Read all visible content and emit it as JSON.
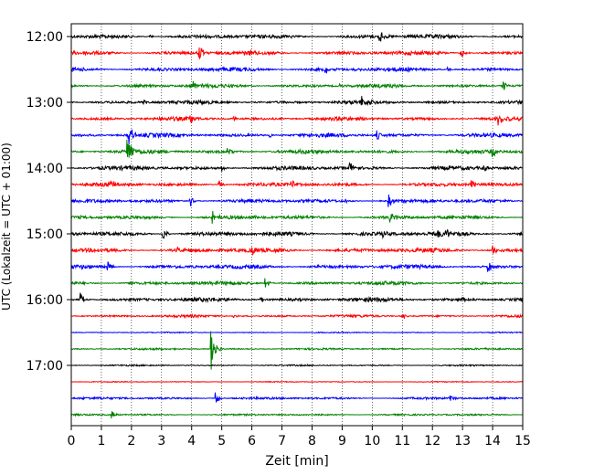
{
  "chart_data": {
    "type": "line",
    "title": "",
    "xlabel": "Zeit  [min]",
    "ylabel": "UTC (Lokalzeit = UTC + 01:00)",
    "xlim": [
      0,
      15
    ],
    "x_ticks": [
      0,
      1,
      2,
      3,
      4,
      5,
      6,
      7,
      8,
      9,
      10,
      11,
      12,
      13,
      14,
      15
    ],
    "x_tick_labels": [
      "0",
      "1",
      "2",
      "3",
      "4",
      "5",
      "6",
      "7",
      "8",
      "9",
      "10",
      "11",
      "12",
      "13",
      "14",
      "15"
    ],
    "y_ticks": [
      "12:00",
      "13:00",
      "14:00",
      "15:00",
      "16:00",
      "17:00"
    ],
    "grid": "vertical dotted",
    "row_colors": [
      "#000000",
      "#ff0000",
      "#0000ff",
      "#008000"
    ],
    "series": [
      {
        "start": "12:00",
        "events": [
          {
            "x": 10.25,
            "amp": 0.4
          },
          {
            "x": 2.6,
            "amp": 0.12
          },
          {
            "x": 7.2,
            "amp": 0.1
          }
        ]
      },
      {
        "start": "12:15",
        "events": [
          {
            "x": 4.25,
            "amp": 0.45
          },
          {
            "x": 5.9,
            "amp": 0.2
          },
          {
            "x": 12.95,
            "amp": 0.3
          }
        ]
      },
      {
        "start": "12:30",
        "events": [
          {
            "x": 8.45,
            "amp": 0.42
          },
          {
            "x": 9.4,
            "amp": 0.18
          },
          {
            "x": 12.5,
            "amp": 0.15
          }
        ]
      },
      {
        "start": "12:45",
        "events": [
          {
            "x": 4.05,
            "amp": 0.3
          },
          {
            "x": 14.35,
            "amp": 0.42
          },
          {
            "x": 8.9,
            "amp": 0.12
          }
        ]
      },
      {
        "start": "13:00",
        "events": [
          {
            "x": 9.65,
            "amp": 0.35
          },
          {
            "x": 2.4,
            "amp": 0.15
          }
        ]
      },
      {
        "start": "13:15",
        "events": [
          {
            "x": 3.95,
            "amp": 0.42
          },
          {
            "x": 14.2,
            "amp": 0.38
          },
          {
            "x": 5.4,
            "amp": 0.15
          }
        ]
      },
      {
        "start": "13:30",
        "events": [
          {
            "x": 1.9,
            "amp": 0.9
          },
          {
            "x": 10.15,
            "amp": 0.35
          },
          {
            "x": 6.6,
            "amp": 0.15
          }
        ]
      },
      {
        "start": "13:45",
        "events": [
          {
            "x": 1.88,
            "amp": 1.1
          },
          {
            "x": 5.2,
            "amp": 0.25
          },
          {
            "x": 14.0,
            "amp": 0.3
          }
        ]
      },
      {
        "start": "14:00",
        "events": [
          {
            "x": 9.25,
            "amp": 0.42
          },
          {
            "x": 5.0,
            "amp": 0.22
          },
          {
            "x": 13.7,
            "amp": 0.2
          }
        ]
      },
      {
        "start": "14:15",
        "events": [
          {
            "x": 1.3,
            "amp": 0.35
          },
          {
            "x": 4.9,
            "amp": 0.3
          },
          {
            "x": 7.3,
            "amp": 0.38
          },
          {
            "x": 13.3,
            "amp": 0.35
          }
        ]
      },
      {
        "start": "14:30",
        "events": [
          {
            "x": 3.95,
            "amp": 0.4
          },
          {
            "x": 10.55,
            "amp": 0.38
          },
          {
            "x": 9.1,
            "amp": 0.2
          }
        ]
      },
      {
        "start": "14:45",
        "events": [
          {
            "x": 4.7,
            "amp": 0.35
          },
          {
            "x": 10.6,
            "amp": 0.38
          },
          {
            "x": 6.1,
            "amp": 0.15
          }
        ]
      },
      {
        "start": "15:00",
        "events": [
          {
            "x": 3.05,
            "amp": 0.45
          },
          {
            "x": 12.2,
            "amp": 0.35
          },
          {
            "x": 12.45,
            "amp": 0.3
          },
          {
            "x": 10.35,
            "amp": 0.2
          }
        ]
      },
      {
        "start": "15:15",
        "events": [
          {
            "x": 6.0,
            "amp": 0.35
          },
          {
            "x": 14.0,
            "amp": 0.35
          },
          {
            "x": 3.5,
            "amp": 0.18
          }
        ]
      },
      {
        "start": "15:30",
        "events": [
          {
            "x": 1.2,
            "amp": 0.35
          },
          {
            "x": 13.85,
            "amp": 0.4
          },
          {
            "x": 8.2,
            "amp": 0.15
          }
        ]
      },
      {
        "start": "15:45",
        "events": [
          {
            "x": 6.45,
            "amp": 0.35
          },
          {
            "x": 2.0,
            "amp": 0.15
          }
        ]
      },
      {
        "start": "16:00",
        "events": [
          {
            "x": 0.3,
            "amp": 0.42
          },
          {
            "x": 13.0,
            "amp": 0.22
          },
          {
            "x": 6.3,
            "amp": 0.15
          }
        ]
      },
      {
        "start": "16:15",
        "events": [
          {
            "x": 11.0,
            "amp": 0.2
          },
          {
            "x": 5.4,
            "amp": 0.12
          }
        ]
      },
      {
        "start": "16:30",
        "events": []
      },
      {
        "start": "16:45",
        "events": [
          {
            "x": 4.65,
            "amp": 1.3
          }
        ]
      },
      {
        "start": "17:00",
        "events": []
      },
      {
        "start": "17:15",
        "events": []
      },
      {
        "start": "17:30",
        "events": [
          {
            "x": 4.8,
            "amp": 0.42
          },
          {
            "x": 12.6,
            "amp": 0.2
          }
        ]
      },
      {
        "start": "17:45",
        "events": [
          {
            "x": 1.35,
            "amp": 0.28
          }
        ]
      }
    ]
  }
}
